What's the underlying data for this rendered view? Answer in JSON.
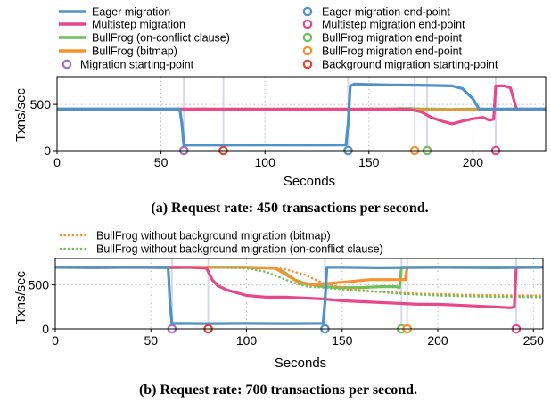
{
  "colors": {
    "eager": "#4f91c9",
    "multistep": "#e8478b",
    "bullfrog_conflict": "#6fbf5b",
    "bullfrog_bitmap": "#f5922f",
    "start_point": "#a76bc0",
    "background_start": "#e2462e",
    "grid": "#bbbbbb",
    "marker_line": "#d7d9ea"
  },
  "chart_data": [
    {
      "type": "line",
      "caption": "(a) Request rate: 450 transactions per second.",
      "xlabel": "Seconds",
      "ylabel": "Txns/sec",
      "xlim": [
        0,
        235
      ],
      "ylim": [
        0,
        800
      ],
      "xticks": [
        0,
        50,
        100,
        150,
        200
      ],
      "yticks": [
        0,
        500
      ],
      "grid": "dotted vertical at 50,100,150,200; dotted horizontal at 500",
      "legend": [
        {
          "label": "Eager migration",
          "kind": "line",
          "color_key": "eager"
        },
        {
          "label": "Eager migration end-point",
          "kind": "marker",
          "color_key": "eager"
        },
        {
          "label": "Multistep migration",
          "kind": "line",
          "color_key": "multistep"
        },
        {
          "label": "Multistep migration end-point",
          "kind": "marker",
          "color_key": "multistep"
        },
        {
          "label": "BullFrog (on-conflict clause)",
          "kind": "line",
          "color_key": "bullfrog_conflict"
        },
        {
          "label": "BullFrog migration end-point",
          "kind": "marker",
          "color_key": "bullfrog_conflict"
        },
        {
          "label": "BullFrog (bitmap)",
          "kind": "line",
          "color_key": "bullfrog_bitmap"
        },
        {
          "label": "BullFrog migration end-point",
          "kind": "marker",
          "color_key": "bullfrog_bitmap"
        },
        {
          "label": "Migration starting-point",
          "kind": "marker",
          "color_key": "start_point"
        },
        {
          "label": "Background migration starting-point",
          "kind": "marker",
          "color_key": "background_start"
        }
      ],
      "series": [
        {
          "key": "bullfrog_conflict",
          "style": "solid",
          "x": [
            0,
            10,
            20,
            30,
            40,
            50,
            60,
            62,
            70,
            80,
            90,
            100,
            110,
            120,
            130,
            140,
            150,
            160,
            165,
            170,
            175,
            180,
            190,
            200,
            210,
            220,
            230,
            235
          ],
          "y": [
            450,
            445,
            450,
            445,
            450,
            445,
            450,
            445,
            450,
            445,
            450,
            445,
            450,
            445,
            450,
            445,
            450,
            450,
            455,
            455,
            450,
            450,
            445,
            450,
            445,
            450,
            445,
            450
          ]
        },
        {
          "key": "bullfrog_bitmap",
          "style": "solid",
          "x": [
            0,
            10,
            20,
            30,
            40,
            50,
            60,
            70,
            80,
            90,
            100,
            110,
            120,
            130,
            140,
            150,
            160,
            170,
            175,
            180,
            190,
            200,
            210,
            220,
            230,
            235
          ],
          "y": [
            440,
            440,
            440,
            440,
            440,
            440,
            440,
            445,
            440,
            440,
            440,
            440,
            440,
            440,
            440,
            440,
            440,
            445,
            440,
            440,
            440,
            440,
            440,
            440,
            440,
            440
          ]
        },
        {
          "key": "multistep",
          "style": "solid",
          "x": [
            0,
            60,
            70,
            80,
            90,
            100,
            110,
            120,
            130,
            140,
            150,
            160,
            165,
            170,
            175,
            180,
            185,
            190,
            195,
            200,
            205,
            208,
            210,
            211,
            215,
            218,
            221,
            235
          ],
          "y": [
            450,
            450,
            450,
            450,
            450,
            450,
            450,
            450,
            450,
            450,
            450,
            450,
            450,
            445,
            420,
            360,
            320,
            290,
            320,
            345,
            360,
            330,
            340,
            700,
            700,
            680,
            450,
            450
          ]
        },
        {
          "key": "eager",
          "style": "solid",
          "x": [
            0,
            59,
            60,
            61,
            65,
            80,
            100,
            120,
            139,
            140,
            141,
            143,
            150,
            160,
            170,
            180,
            190,
            195,
            200,
            203,
            204,
            235
          ],
          "y": [
            450,
            450,
            300,
            60,
            62,
            60,
            62,
            60,
            62,
            300,
            700,
            720,
            715,
            710,
            708,
            705,
            700,
            670,
            560,
            450,
            450,
            450
          ]
        }
      ],
      "markers": [
        {
          "x": 61,
          "color_key": "start_point"
        },
        {
          "x": 80,
          "color_key": "background_start"
        },
        {
          "x": 140,
          "color_key": "eager"
        },
        {
          "x": 172,
          "color_key": "bullfrog_bitmap"
        },
        {
          "x": 178,
          "color_key": "bullfrog_conflict"
        },
        {
          "x": 211,
          "color_key": "multistep"
        }
      ]
    },
    {
      "type": "line",
      "caption": "(b) Request rate: 700 transactions per second.",
      "xlabel": "Seconds",
      "ylabel": "Txns/sec",
      "xlim": [
        0,
        255
      ],
      "ylim": [
        0,
        800
      ],
      "xticks": [
        0,
        50,
        100,
        150,
        200,
        250
      ],
      "yticks": [
        0,
        500
      ],
      "grid": "dotted vertical at 50,100,150,200,250; dotted horizontal at 500",
      "legend": [
        {
          "label": "BullFrog without background migration (bitmap)",
          "kind": "dotted",
          "color_key": "bullfrog_bitmap"
        },
        {
          "label": "BullFrog without background migration (on-conflict clause)",
          "kind": "dotted",
          "color_key": "bullfrog_conflict"
        }
      ],
      "series": [
        {
          "key": "bullfrog_conflict",
          "style": "solid",
          "x": [
            0,
            20,
            40,
            60,
            80,
            100,
            115,
            120,
            125,
            130,
            140,
            150,
            160,
            170,
            178,
            180,
            181,
            200,
            230,
            255
          ],
          "y": [
            700,
            695,
            700,
            695,
            700,
            700,
            690,
            640,
            560,
            520,
            480,
            470,
            470,
            480,
            480,
            470,
            700,
            700,
            695,
            700
          ]
        },
        {
          "key": "bullfrog_bitmap",
          "style": "solid",
          "x": [
            0,
            20,
            40,
            60,
            80,
            100,
            115,
            122,
            128,
            135,
            145,
            155,
            165,
            175,
            183,
            184,
            200,
            230,
            255
          ],
          "y": [
            700,
            700,
            700,
            700,
            700,
            700,
            690,
            600,
            520,
            500,
            520,
            540,
            560,
            560,
            560,
            700,
            700,
            700,
            700
          ]
        },
        {
          "key": "bullfrog_bitmap",
          "style": "dotted",
          "x": [
            0,
            40,
            80,
            110,
            120,
            130,
            140,
            150,
            160,
            170,
            180,
            190,
            200,
            210,
            220,
            230,
            240,
            255
          ],
          "y": [
            700,
            700,
            700,
            700,
            680,
            620,
            520,
            470,
            440,
            420,
            410,
            400,
            395,
            390,
            385,
            385,
            380,
            380
          ]
        },
        {
          "key": "bullfrog_conflict",
          "style": "dotted",
          "x": [
            0,
            40,
            80,
            100,
            110,
            118,
            125,
            132,
            140,
            150,
            160,
            170,
            180,
            190,
            200,
            210,
            220,
            230,
            240,
            255
          ],
          "y": [
            700,
            700,
            700,
            690,
            650,
            580,
            520,
            480,
            470,
            450,
            430,
            420,
            400,
            390,
            380,
            375,
            370,
            365,
            365,
            360
          ]
        },
        {
          "key": "multistep",
          "style": "solid",
          "x": [
            0,
            70,
            79,
            80,
            82,
            85,
            90,
            95,
            100,
            110,
            120,
            130,
            140,
            150,
            160,
            170,
            180,
            190,
            200,
            210,
            220,
            230,
            238,
            240,
            241,
            255
          ],
          "y": [
            700,
            700,
            690,
            650,
            560,
            490,
            440,
            410,
            380,
            360,
            360,
            350,
            340,
            320,
            310,
            300,
            290,
            280,
            280,
            270,
            260,
            250,
            240,
            250,
            700,
            700
          ]
        },
        {
          "key": "eager",
          "style": "solid",
          "x": [
            0,
            59,
            60,
            61,
            65,
            80,
            100,
            120,
            140,
            141,
            142,
            150,
            170,
            200,
            230,
            255
          ],
          "y": [
            700,
            700,
            300,
            60,
            62,
            60,
            62,
            60,
            62,
            300,
            700,
            700,
            695,
            700,
            700,
            700
          ]
        }
      ],
      "markers": [
        {
          "x": 61,
          "color_key": "start_point"
        },
        {
          "x": 80,
          "color_key": "background_start"
        },
        {
          "x": 141,
          "color_key": "eager"
        },
        {
          "x": 181,
          "color_key": "bullfrog_conflict"
        },
        {
          "x": 184,
          "color_key": "bullfrog_bitmap"
        },
        {
          "x": 241,
          "color_key": "multistep"
        }
      ]
    }
  ]
}
